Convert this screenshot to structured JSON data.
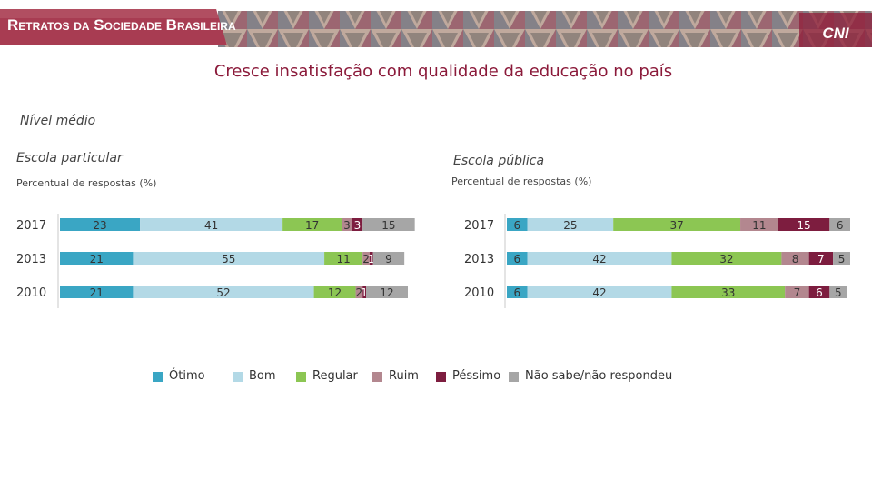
{
  "header": {
    "title": "Retratos da Sociedade Brasileira",
    "logo": "CNI"
  },
  "page_title": "Cresce insatisfação com qualidade da educação no país",
  "subtitle": "Nível médio",
  "panels": [
    {
      "title": "Escola particular",
      "sub": "Percentual de respostas (%)"
    },
    {
      "title": "Escola pública",
      "sub": "Percentual de respostas (%)"
    }
  ],
  "legend": [
    "Ótimo",
    "Bom",
    "Regular",
    "Ruim",
    "Péssimo",
    "Não sabe/não respondeu"
  ],
  "colors": {
    "otimo": "#3aa6c4",
    "bom": "#b3d9e6",
    "regular": "#8cc653",
    "ruim": "#b3878f",
    "pessimo": "#7d1d3f",
    "nsnr": "#a6a6a6",
    "title": "#8b1a3a",
    "header": "#a83c52"
  },
  "chart_data": [
    {
      "type": "bar",
      "orientation": "horizontal",
      "stacked": true,
      "title": "Escola particular",
      "ylabel": "Percentual de respostas (%)",
      "categories": [
        "2017",
        "2013",
        "2010"
      ],
      "series": [
        {
          "name": "Ótimo",
          "values": [
            23,
            21,
            21
          ]
        },
        {
          "name": "Bom",
          "values": [
            41,
            55,
            52
          ]
        },
        {
          "name": "Regular",
          "values": [
            17,
            11,
            12
          ]
        },
        {
          "name": "Ruim",
          "values": [
            3,
            2,
            2
          ]
        },
        {
          "name": "Péssimo",
          "values": [
            3,
            1,
            1
          ]
        },
        {
          "name": "Não sabe/não respondeu",
          "values": [
            15,
            9,
            12
          ]
        }
      ],
      "xlim": [
        0,
        100
      ]
    },
    {
      "type": "bar",
      "orientation": "horizontal",
      "stacked": true,
      "title": "Escola pública",
      "ylabel": "Percentual de respostas (%)",
      "categories": [
        "2017",
        "2013",
        "2010"
      ],
      "series": [
        {
          "name": "Ótimo",
          "values": [
            6,
            6,
            6
          ]
        },
        {
          "name": "Bom",
          "values": [
            25,
            42,
            42
          ]
        },
        {
          "name": "Regular",
          "values": [
            37,
            32,
            33
          ]
        },
        {
          "name": "Ruim",
          "values": [
            11,
            8,
            7
          ]
        },
        {
          "name": "Péssimo",
          "values": [
            15,
            7,
            6
          ]
        },
        {
          "name": "Não sabe/não respondeu",
          "values": [
            6,
            5,
            5
          ]
        }
      ],
      "xlim": [
        0,
        100
      ]
    }
  ]
}
